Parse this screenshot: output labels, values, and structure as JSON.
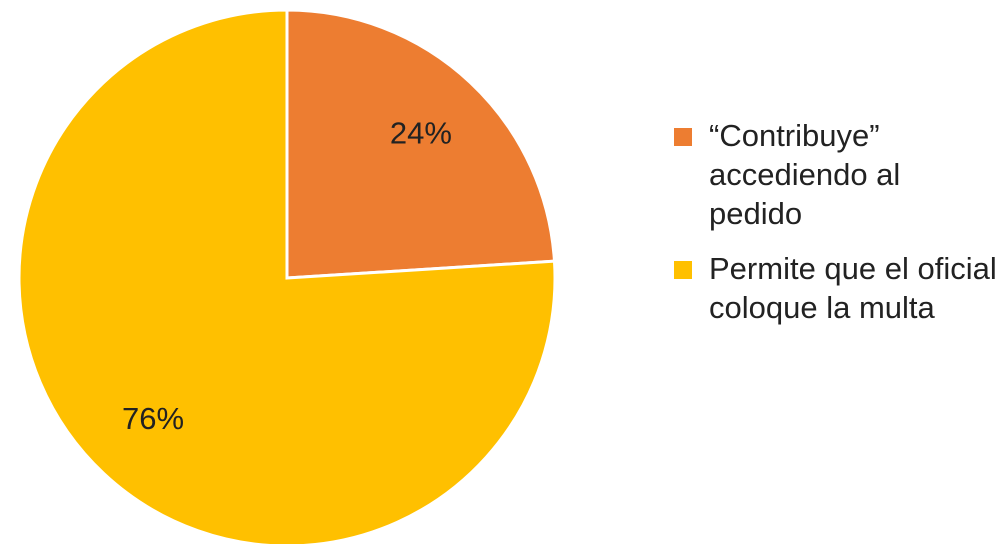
{
  "chart_data": {
    "type": "pie",
    "slices": [
      {
        "label": "“Contribuye” accediendo al pedido",
        "value": 24,
        "data_label": "24%",
        "color": "#ED7D31"
      },
      {
        "label": "Permite que el oficial coloque la multa",
        "value": 76,
        "data_label": "76%",
        "color": "#FFC000"
      }
    ],
    "start_angle_deg": 0,
    "direction": "clockwise",
    "legend_position": "right"
  },
  "legend": {
    "items": [
      {
        "label": "“Contribuye” accediendo al pedido",
        "color": "#ED7D31"
      },
      {
        "label": "Permite que el oficial coloque la multa",
        "color": "#FFC000"
      }
    ]
  }
}
